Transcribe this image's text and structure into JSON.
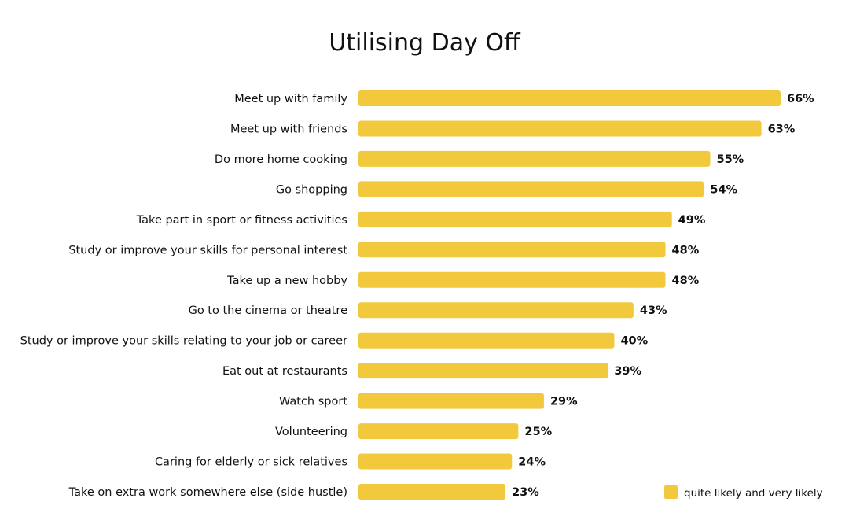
{
  "chart_data": {
    "type": "bar",
    "orientation": "horizontal",
    "title": "Utilising Day Off",
    "categories": [
      "Meet up with family",
      "Meet up with friends",
      "Do more home cooking",
      "Go shopping",
      "Take part in sport or fitness activities",
      "Study or improve your skills for personal interest",
      "Take up a new hobby",
      "Go to the cinema or theatre",
      "Study or improve your skills relating to your job or career",
      "Eat out at restaurants",
      "Watch sport",
      "Volunteering",
      "Caring for elderly or sick relatives",
      "Take on extra work somewhere else (side hustle)"
    ],
    "series": [
      {
        "name": "quite likely and very likely",
        "values": [
          66,
          63,
          55,
          54,
          49,
          48,
          48,
          43,
          40,
          39,
          29,
          25,
          24,
          23
        ],
        "labels": [
          "66%",
          "63%",
          "55%",
          "54%",
          "49%",
          "48%",
          "48%",
          "43%",
          "40%",
          "39%",
          "29%",
          "25%",
          "24%",
          "23%"
        ],
        "color": "#F2C93C"
      }
    ],
    "value_unit": "%",
    "xlim": [
      0,
      66
    ],
    "grid": false,
    "legend_position": "bottom-right"
  }
}
